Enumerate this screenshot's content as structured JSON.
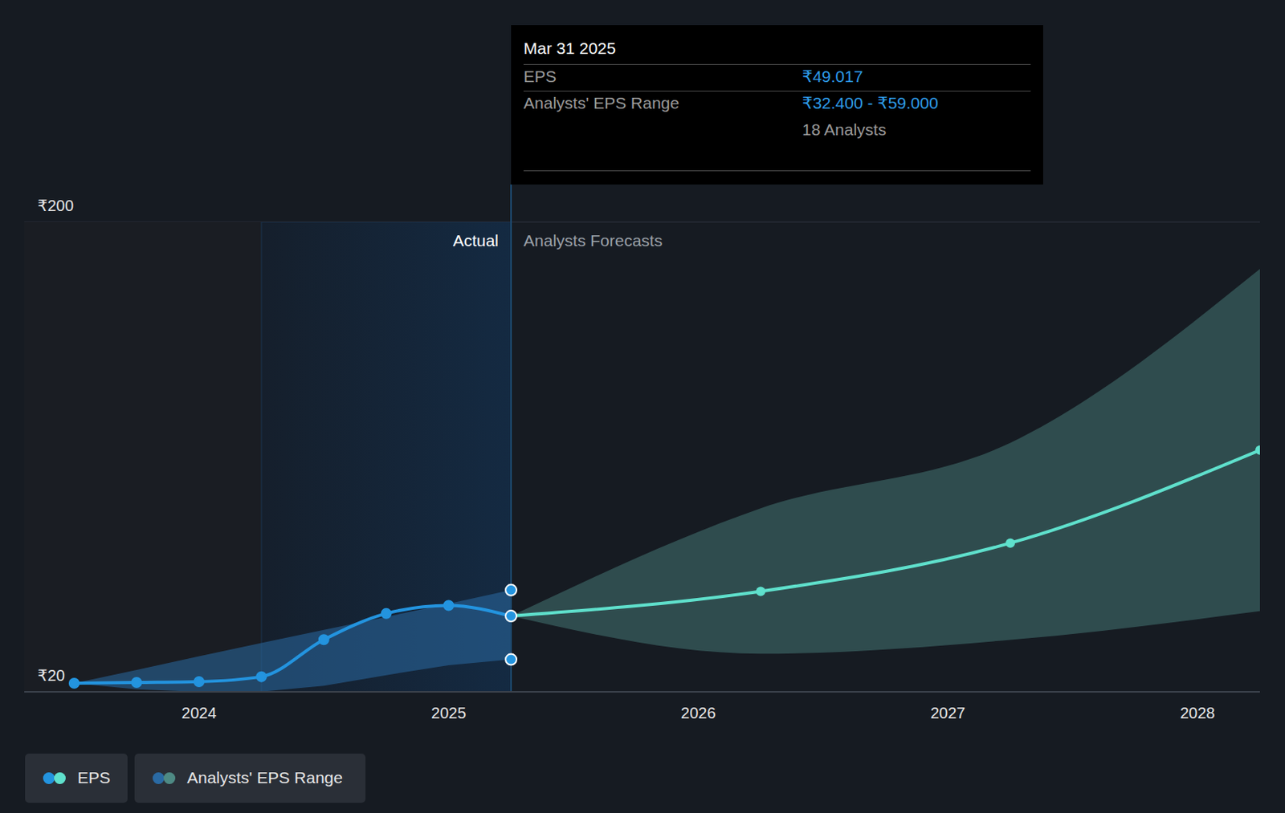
{
  "chart_data": {
    "type": "line",
    "x": [
      2023.5,
      2023.75,
      2024,
      2024.25,
      2024.5,
      2024.75,
      2025,
      2025.25,
      2026.25,
      2027.25,
      2028.25
    ],
    "xlim": [
      2023.3,
      2028.25
    ],
    "xticks": [
      2024,
      2025,
      2026,
      2027,
      2028
    ],
    "ylim": [
      20,
      200
    ],
    "yticks": [
      {
        "value": 20,
        "label": "₹20"
      },
      {
        "value": 200,
        "label": "₹200"
      }
    ],
    "grid": true,
    "series": [
      {
        "name": "EPS",
        "colors": [
          "#2394df",
          "#5fe0cc"
        ],
        "marker": "circle",
        "values": [
          23.3,
          23.6,
          23.9,
          25.8,
          40.0,
          50.0,
          53.1,
          49.017,
          58.5,
          77.0,
          112.6
        ]
      },
      {
        "name": "Analysts' EPS Range",
        "colors": [
          "#2a6aa3",
          "#4e8a84"
        ],
        "low": [
          23.3,
          21.0,
          20.0,
          20.1,
          22.3,
          26.4,
          30.2,
          32.4,
          34.6,
          39.9,
          50.9
        ],
        "high": [
          23.3,
          28.4,
          33.6,
          38.7,
          43.7,
          48.7,
          53.8,
          59.0,
          90.3,
          115.4,
          182.0
        ]
      }
    ],
    "highlight": {
      "x": [
        2024.25,
        2025.25
      ]
    },
    "annotations": [
      {
        "text": "Actual",
        "x": 2025.25
      },
      {
        "text": "Analysts Forecasts",
        "x": 2025.25
      }
    ],
    "tooltip": {
      "x": 2025.25,
      "title": "Mar 31 2025",
      "rows": [
        {
          "label": "EPS",
          "value": "₹49.017"
        },
        {
          "label": "Analysts' EPS Range",
          "value": "₹32.400 - ₹59.000"
        }
      ],
      "note": "18 Analysts"
    }
  }
}
